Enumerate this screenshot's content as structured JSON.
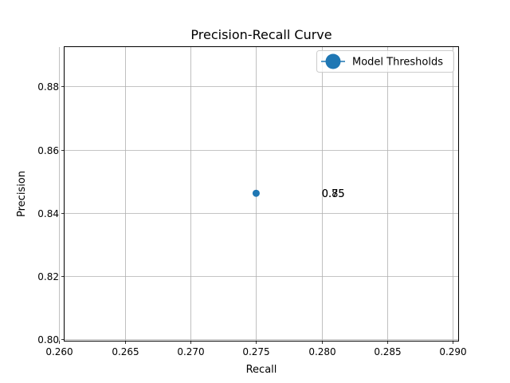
{
  "chart_data": {
    "type": "line",
    "title": "Precision-Recall Curve",
    "xlabel": "Recall",
    "ylabel": "Precision",
    "xlim": [
      0.2604,
      0.2904
    ],
    "ylim": [
      0.7995,
      0.8925
    ],
    "xticks": [
      0.26,
      0.265,
      0.27,
      0.275,
      0.28,
      0.285,
      0.29
    ],
    "xtick_labels": [
      "0.260",
      "0.265",
      "0.270",
      "0.275",
      "0.280",
      "0.285",
      "0.290"
    ],
    "yticks": [
      0.8,
      0.82,
      0.84,
      0.86,
      0.88
    ],
    "ytick_labels": [
      "0.80",
      "0.82",
      "0.84",
      "0.86",
      "0.88"
    ],
    "grid": true,
    "legend_position": "top-right",
    "series": [
      {
        "name": "Model Thresholds",
        "color": "#1f77b4",
        "marker": "circle",
        "x": [
          0.275
        ],
        "y": [
          0.8462
        ]
      }
    ],
    "annotations": [
      {
        "text": "0.85",
        "x": 0.28,
        "y": 0.8462
      },
      {
        "text": "0.75",
        "x": 0.28,
        "y": 0.8462
      }
    ]
  }
}
